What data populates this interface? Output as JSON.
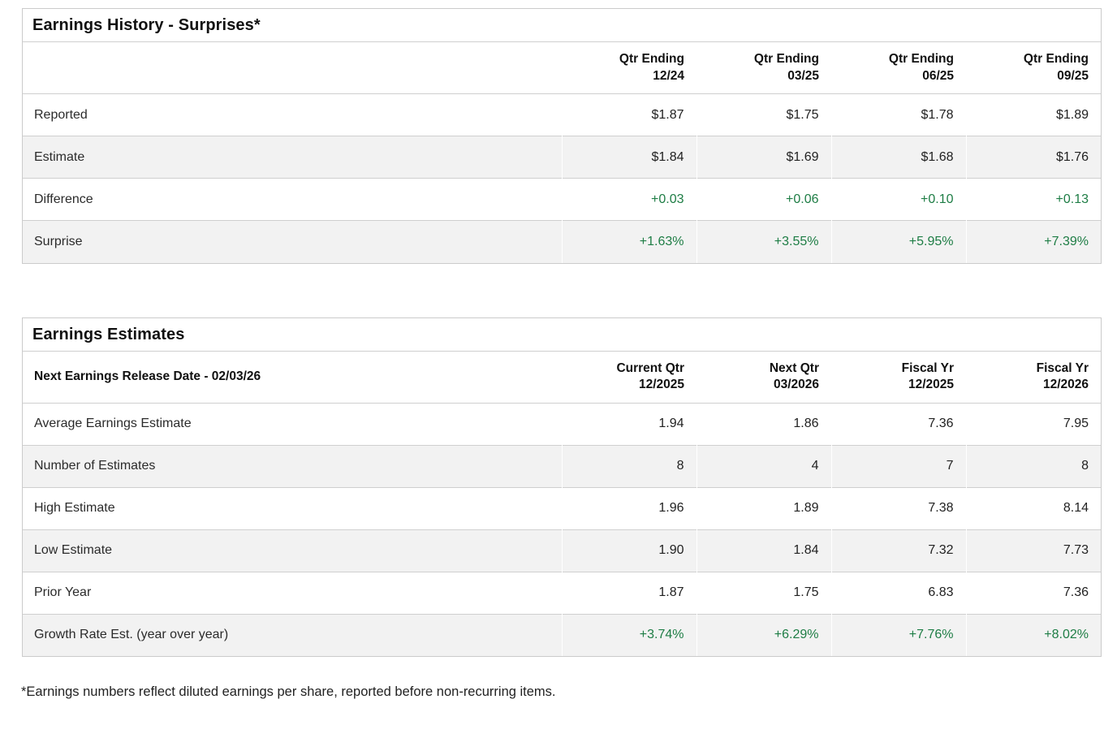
{
  "colors": {
    "positive_green": "#1e7d45",
    "row_alt_bg": "#f2f2f2",
    "border": "#cbcbcb"
  },
  "earnings_history": {
    "title": "Earnings History - Surprises*",
    "columns": [
      {
        "line1": "Qtr Ending",
        "line2": "12/24"
      },
      {
        "line1": "Qtr Ending",
        "line2": "03/25"
      },
      {
        "line1": "Qtr Ending",
        "line2": "06/25"
      },
      {
        "line1": "Qtr Ending",
        "line2": "09/25"
      }
    ],
    "rows": [
      {
        "label": "Reported",
        "values": [
          "$1.87",
          "$1.75",
          "$1.78",
          "$1.89"
        ]
      },
      {
        "label": "Estimate",
        "values": [
          "$1.84",
          "$1.69",
          "$1.68",
          "$1.76"
        ]
      },
      {
        "label": "Difference",
        "values": [
          "+0.03",
          "+0.06",
          "+0.10",
          "+0.13"
        ]
      },
      {
        "label": "Surprise",
        "values": [
          "+1.63%",
          "+3.55%",
          "+5.95%",
          "+7.39%"
        ]
      }
    ]
  },
  "earnings_estimates": {
    "title": "Earnings Estimates",
    "subtitle": "Next Earnings Release Date - 02/03/26",
    "columns": [
      {
        "line1": "Current Qtr",
        "line2": "12/2025"
      },
      {
        "line1": "Next Qtr",
        "line2": "03/2026"
      },
      {
        "line1": "Fiscal Yr",
        "line2": "12/2025"
      },
      {
        "line1": "Fiscal Yr",
        "line2": "12/2026"
      }
    ],
    "rows": [
      {
        "label": "Average Earnings Estimate",
        "values": [
          "1.94",
          "1.86",
          "7.36",
          "7.95"
        ]
      },
      {
        "label": "Number of Estimates",
        "values": [
          "8",
          "4",
          "7",
          "8"
        ]
      },
      {
        "label": "High Estimate",
        "values": [
          "1.96",
          "1.89",
          "7.38",
          "8.14"
        ]
      },
      {
        "label": "Low Estimate",
        "values": [
          "1.90",
          "1.84",
          "7.32",
          "7.73"
        ]
      },
      {
        "label": "Prior Year",
        "values": [
          "1.87",
          "1.75",
          "6.83",
          "7.36"
        ]
      },
      {
        "label": "Growth Rate Est. (year over year)",
        "values": [
          "+3.74%",
          "+6.29%",
          "+7.76%",
          "+8.02%"
        ]
      }
    ]
  },
  "footnote": "*Earnings numbers reflect diluted earnings per share, reported before non-recurring items."
}
